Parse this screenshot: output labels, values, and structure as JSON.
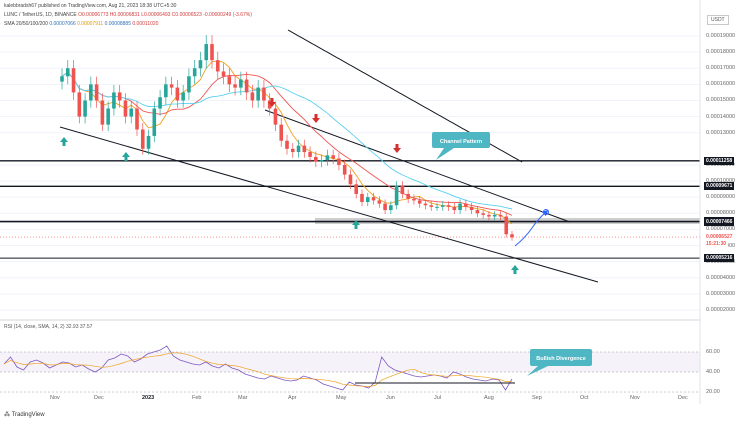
{
  "header": {
    "published": "kalebbradsh67 published on TradingView.com, Aug 21, 2023 18:38 UTC+5:30",
    "symbol_line": "LUNC / TetherUS, 1D, BINANCE",
    "ohlc": "O0.00006773 H0.00006831 L0.00006493 C0.00006523 -0.00000249 (-3.67%)",
    "ma_label": "SMA 20/50/100/200",
    "ma_values": [
      "0.00007066",
      "0.00007911",
      "0.00008885",
      "0.00011020"
    ],
    "currency": "USDT"
  },
  "rsi_label": "RSI (14, close, SMA, 14, 2)  32.93  37.57",
  "logo_text": "TradingView",
  "colors": {
    "up": "#26a69a",
    "down": "#ef5350",
    "sma20": "#f0a020",
    "sma50": "#ef5350",
    "sma100": "#5ad1ee",
    "rsi": "#7e57c2",
    "callout": "#4fb7c4"
  },
  "price_axis": {
    "ticks": [
      "0.00019000",
      "0.00018000",
      "0.00017000",
      "0.00016000",
      "0.00015000",
      "0.00014000",
      "0.00013000",
      "0.00011000",
      "0.00010000",
      "0.00009000",
      "0.00008000",
      "0.00007000",
      "0.00006000",
      "0.00005000",
      "0.00004000",
      "0.00003000",
      "0.00002000"
    ],
    "tags": [
      {
        "label": "0.00011258",
        "color": "#131722"
      },
      {
        "label": "0.00009671",
        "color": "#131722"
      },
      {
        "label": "0.00007510",
        "color": "#131722"
      },
      {
        "label": "0.00007466",
        "color": "#131722"
      },
      {
        "label": "0.00006527",
        "color": "#ef5350"
      },
      {
        "label": "15:21:30",
        "color": "#ef5350"
      },
      {
        "label": "0.00005216",
        "color": "#131722"
      }
    ]
  },
  "rsi_axis": {
    "ticks": [
      "60.00",
      "40.00",
      "20.00"
    ]
  },
  "time_axis": {
    "labels": [
      "Nov",
      "Dec",
      "2023",
      "Feb",
      "Mar",
      "Apr",
      "May",
      "Jun",
      "Jul",
      "Aug",
      "Sep",
      "Oct",
      "Nov",
      "Dec"
    ]
  },
  "annotations": {
    "channel_callout": "Channel Pattern",
    "divergence_callout": "Bullish Divergence"
  },
  "chart_data": {
    "type": "candlestick",
    "title": "",
    "xlabel": "",
    "ylabel": "",
    "ylim": [
      1.5e-05,
      0.000195
    ],
    "horizontal_levels": [
      0.00011258,
      9.671e-05,
      7.51e-05,
      7.466e-05,
      5.216e-05
    ],
    "current_price": 6.527e-05,
    "closes_approx": [
      0.000165,
      0.00017,
      0.000155,
      0.00014,
      0.00015,
      0.00016,
      0.00015,
      0.000135,
      0.000145,
      0.000155,
      0.00015,
      0.00014,
      0.000145,
      0.000132,
      0.00012,
      0.000128,
      0.000145,
      0.000152,
      0.00016,
      0.000158,
      0.00015,
      0.000155,
      0.000165,
      0.00017,
      0.000175,
      0.000185,
      0.000175,
      0.000168,
      0.000165,
      0.00016,
      0.000158,
      0.000163,
      0.000155,
      0.00015,
      0.000158,
      0.00015,
      0.000145,
      0.000135,
      0.000125,
      0.00012,
      0.000118,
      0.000122,
      0.000118,
      0.000115,
      0.000112,
      0.000113,
      0.000116,
      0.000114,
      0.00011,
      0.000104,
      9.8e-05,
      9.2e-05,
      8.7e-05,
      9e-05,
      8.8e-05,
      8.6e-05,
      8.2e-05,
      8.5e-05,
      9.7e-05,
      9.2e-05,
      8.9e-05,
      8.8e-05,
      8.6e-05,
      8.5e-05,
      8.4e-05,
      8.4e-05,
      8.5e-05,
      8.4e-05,
      8.2e-05,
      8.6e-05,
      8.4e-05,
      8.2e-05,
      8e-05,
      7.9e-05,
      7.8e-05,
      7.9e-05,
      7.8e-05,
      6.7e-05,
      6.5e-05
    ],
    "rsi_values_approx": [
      48,
      55,
      45,
      42,
      50,
      52,
      49,
      44,
      47,
      50,
      49,
      45,
      47,
      43,
      40,
      44,
      52,
      54,
      58,
      56,
      50,
      53,
      58,
      60,
      62,
      66,
      56,
      52,
      50,
      48,
      47,
      50,
      46,
      44,
      48,
      44,
      42,
      38,
      36,
      34,
      33,
      36,
      34,
      32,
      31,
      32,
      36,
      34,
      32,
      28,
      26,
      24,
      22,
      30,
      27,
      26,
      24,
      30,
      55,
      46,
      42,
      40,
      38,
      36,
      35,
      36,
      37,
      36,
      34,
      40,
      38,
      35,
      33,
      32,
      31,
      33,
      32,
      22,
      33
    ]
  }
}
